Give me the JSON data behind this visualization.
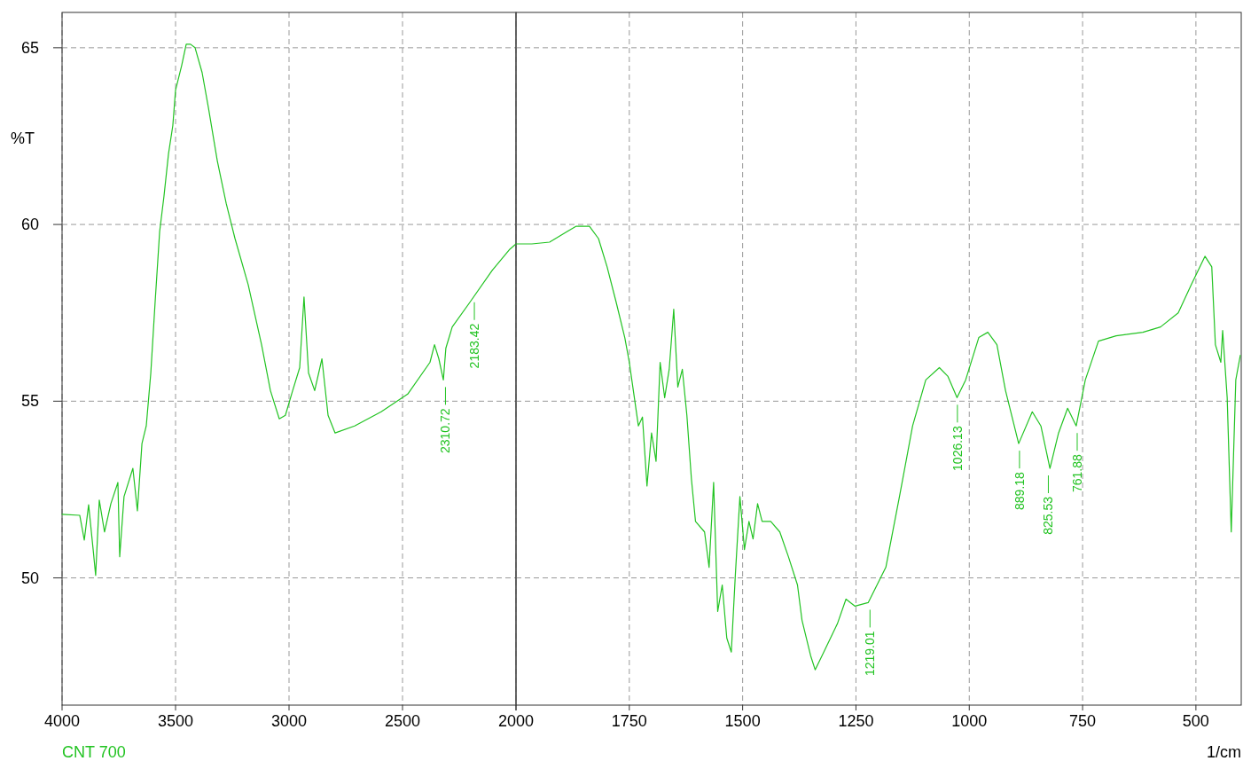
{
  "chart_data": [
    {
      "type": "line",
      "ylabel": "%T",
      "xlim": [
        4000,
        2000
      ],
      "ylim": [
        46.4,
        66
      ],
      "xticks": [
        4000,
        3500,
        3000,
        2500,
        2000
      ],
      "yticks": [
        50,
        55,
        60,
        65
      ],
      "grid": true,
      "legend": "bottom left",
      "tick_labels": "xy",
      "series": [
        {
          "name": "CNT 700",
          "color": "#22c322",
          "x": [
            4000,
            3922,
            3902,
            3883,
            3863,
            3852,
            3836,
            3813,
            3785,
            3754,
            3746,
            3727,
            3688,
            3668,
            3648,
            3629,
            3609,
            3590,
            3570,
            3551,
            3531,
            3512,
            3500,
            3473,
            3453,
            3434,
            3414,
            3383,
            3355,
            3316,
            3277,
            3238,
            3180,
            3121,
            3082,
            3043,
            3016,
            2984,
            2953,
            2934,
            2914,
            2887,
            2855,
            2828,
            2797,
            2711,
            2594,
            2477,
            2379,
            2359,
            2340,
            2320,
            2309,
            2281,
            2203,
            2105,
            2027,
            2000
          ],
          "values": [
            51.8,
            51.77,
            51.07,
            52.07,
            50.8,
            50.07,
            52.2,
            51.3,
            52.1,
            52.7,
            50.6,
            52.3,
            53.1,
            51.9,
            53.8,
            54.3,
            55.8,
            57.8,
            59.8,
            60.8,
            62.0,
            62.8,
            63.8,
            64.5,
            65.1,
            65.1,
            65.0,
            64.3,
            63.3,
            61.8,
            60.6,
            59.6,
            58.3,
            56.6,
            55.3,
            54.5,
            54.6,
            55.3,
            55.95,
            57.95,
            55.8,
            55.3,
            56.2,
            54.6,
            54.1,
            54.3,
            54.7,
            55.2,
            56.1,
            56.6,
            56.2,
            55.6,
            56.5,
            57.1,
            57.8,
            58.7,
            59.3,
            59.45
          ]
        }
      ],
      "annotations": [
        {
          "text": "2310.72",
          "x": 2310.72,
          "y": 55.6
        },
        {
          "text": "2183.42",
          "x": 2183.42,
          "y": 58.0
        }
      ]
    },
    {
      "type": "line",
      "xlabel": "1/cm",
      "xlim": [
        2000,
        400
      ],
      "ylim": [
        46.4,
        66
      ],
      "xticks": [
        {
          "value": 2000,
          "label": null
        },
        1750,
        1500,
        1250,
        1000,
        750,
        500
      ],
      "yticks": [
        50,
        55,
        60,
        65
      ],
      "grid": true,
      "tick_labels": "x",
      "series": [
        {
          "color": "#22c322",
          "x": [
            2000,
            1965,
            1926,
            1887,
            1867,
            1838,
            1818,
            1799,
            1779,
            1760,
            1750,
            1740,
            1730,
            1721,
            1711,
            1701,
            1691,
            1682,
            1672,
            1662,
            1652,
            1643,
            1633,
            1623,
            1613,
            1604,
            1584,
            1574,
            1564,
            1555,
            1545,
            1535,
            1525,
            1516,
            1506,
            1496,
            1486,
            1477,
            1467,
            1457,
            1438,
            1418,
            1399,
            1379,
            1369,
            1350,
            1340,
            1321,
            1291,
            1272,
            1252,
            1223,
            1184,
            1154,
            1125,
            1096,
            1066,
            1047,
            1027,
            1008,
            979,
            959,
            939,
            920,
            891,
            861,
            842,
            822,
            803,
            783,
            764,
            744,
            715,
            676,
            617,
            578,
            539,
            510,
            480,
            465,
            457,
            445,
            441,
            431,
            422,
            412,
            402
          ],
          "values": [
            59.45,
            59.45,
            59.5,
            59.8,
            59.95,
            59.95,
            59.6,
            58.8,
            57.8,
            56.8,
            56.1,
            55.2,
            54.3,
            54.55,
            52.6,
            54.1,
            53.3,
            56.1,
            55.1,
            55.9,
            57.6,
            55.4,
            55.9,
            54.6,
            52.8,
            51.6,
            51.3,
            50.3,
            52.7,
            49.05,
            49.8,
            48.3,
            47.9,
            50.1,
            52.3,
            50.8,
            51.6,
            51.1,
            52.1,
            51.6,
            51.6,
            51.3,
            50.6,
            49.8,
            48.8,
            47.8,
            47.4,
            47.9,
            48.7,
            49.4,
            49.2,
            49.3,
            50.3,
            52.3,
            54.3,
            55.6,
            55.95,
            55.7,
            55.1,
            55.6,
            56.8,
            56.95,
            56.6,
            55.3,
            53.8,
            54.7,
            54.3,
            53.1,
            54.1,
            54.8,
            54.3,
            55.6,
            56.7,
            56.85,
            56.95,
            57.1,
            57.5,
            58.3,
            59.1,
            58.8,
            56.6,
            56.1,
            57.0,
            55.1,
            51.3,
            55.6,
            56.3
          ]
        }
      ],
      "annotations": [
        {
          "text": "1219.01",
          "x": 1219.01,
          "y": 49.3
        },
        {
          "text": "1026.13",
          "x": 1026.13,
          "y": 55.1
        },
        {
          "text": "889.18",
          "x": 889.18,
          "y": 53.8
        },
        {
          "text": "825.53",
          "x": 825.53,
          "y": 53.1
        },
        {
          "text": "761.88",
          "x": 761.88,
          "y": 54.3
        }
      ]
    }
  ]
}
